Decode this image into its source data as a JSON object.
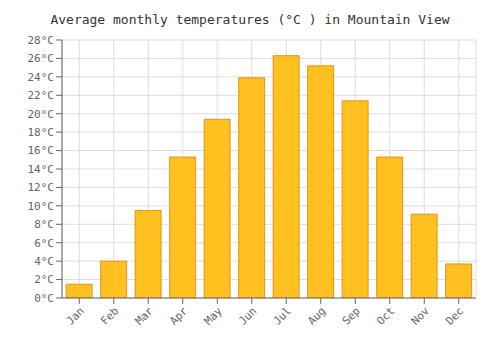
{
  "chart_data": {
    "type": "bar",
    "title": "Average monthly temperatures (°C ) in Mountain View",
    "categories": [
      "Jan",
      "Feb",
      "Mar",
      "Apr",
      "May",
      "Jun",
      "Jul",
      "Aug",
      "Sep",
      "Oct",
      "Nov",
      "Dec"
    ],
    "values": [
      1.5,
      4.0,
      9.5,
      15.3,
      19.4,
      23.9,
      26.3,
      25.2,
      21.4,
      15.3,
      9.1,
      3.7
    ],
    "color": "#FFC020",
    "ylim": [
      0,
      28
    ],
    "yticks": [
      {
        "value": 0,
        "label": "0°C"
      },
      {
        "value": 2,
        "label": "2°C"
      },
      {
        "value": 4,
        "label": "4°C"
      },
      {
        "value": 6,
        "label": "6°C"
      },
      {
        "value": 8,
        "label": "8°C"
      },
      {
        "value": 10,
        "label": "10°C"
      },
      {
        "value": 12,
        "label": "12°C"
      },
      {
        "value": 14,
        "label": "14°C"
      },
      {
        "value": 16,
        "label": "16°C"
      },
      {
        "value": 18,
        "label": "18°C"
      },
      {
        "value": 20,
        "label": "20°C"
      },
      {
        "value": 22,
        "label": "22°C"
      },
      {
        "value": 24,
        "label": "24°C"
      },
      {
        "value": 26,
        "label": "26°C"
      },
      {
        "value": 28,
        "label": "28°C"
      }
    ],
    "grid": true
  }
}
